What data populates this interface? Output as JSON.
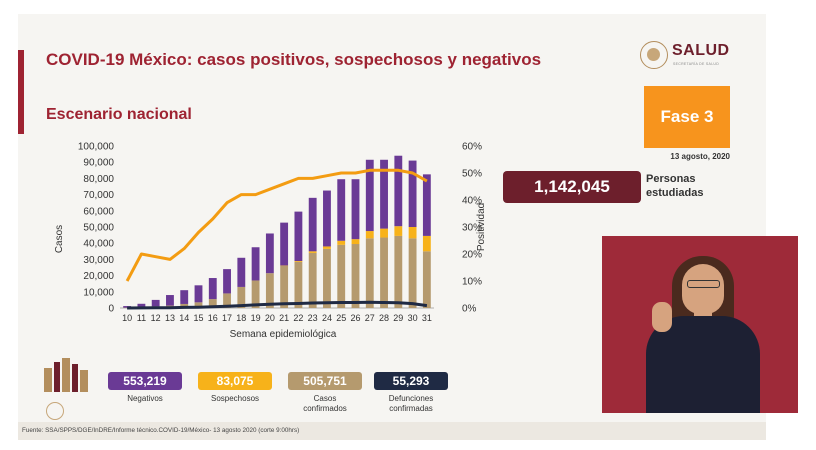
{
  "header": {
    "title": "COVID-19 México: casos positivos, sospechosos y negativos",
    "subtitle": "Escenario nacional"
  },
  "logo": {
    "text": "SALUD",
    "subtext": "SECRETARÍA DE SALUD"
  },
  "phase": {
    "label": "Fase 3",
    "date": "13 agosto, 2020"
  },
  "studied": {
    "value": "1,142,045",
    "label_line1": "Personas",
    "label_line2": "estudiadas"
  },
  "legend": {
    "negatives": {
      "value": "553,219",
      "label": "Negativos",
      "color": "#6a3a95"
    },
    "suspects": {
      "value": "83,075",
      "label": "Sospechosos",
      "color": "#f7b21a"
    },
    "confirmed": {
      "value": "505,751",
      "label_line1": "Casos",
      "label_line2": "confirmados",
      "color": "#b59a6e"
    },
    "deaths": {
      "value": "55,293",
      "label_line1": "Defunciones",
      "label_line2": "confirmadas",
      "color": "#1f2a44"
    }
  },
  "source": "Fuente: SSA/SPPS/DGE/InDRE/Informe técnico.COVID-19/México- 13 agosto 2020 (corte 9:00hrs)",
  "chart_data": {
    "type": "bar",
    "stacked": true,
    "categories": [
      "10",
      "11",
      "12",
      "13",
      "14",
      "15",
      "16",
      "17",
      "18",
      "19",
      "20",
      "21",
      "22",
      "23",
      "24",
      "25",
      "26",
      "27",
      "28",
      "29",
      "30",
      "31"
    ],
    "xlabel": "Semana epidemiológica",
    "ylabel": "Casos",
    "y2label": "Positividad",
    "ylim": [
      0,
      100000
    ],
    "y2lim": [
      0,
      60
    ],
    "y_ticks": [
      "0",
      "10,000",
      "20,000",
      "30,000",
      "40,000",
      "50,000",
      "60,000",
      "70,000",
      "80,000",
      "90,000",
      "100,000"
    ],
    "y2_ticks": [
      "0%",
      "10%",
      "20%",
      "30%",
      "40%",
      "50%",
      "60%"
    ],
    "series": [
      {
        "key": "confirmed",
        "color": "#b59a6e",
        "values": [
          200,
          600,
          1000,
          1500,
          2500,
          3500,
          5500,
          9000,
          13000,
          17000,
          21500,
          26000,
          28500,
          34000,
          36500,
          39000,
          39500,
          43000,
          43500,
          44500,
          43000,
          35000
        ]
      },
      {
        "key": "suspects",
        "color": "#f7b21a",
        "values": [
          0,
          0,
          0,
          0,
          0,
          0,
          0,
          0,
          0,
          0,
          0,
          200,
          500,
          1000,
          1500,
          2500,
          3000,
          4500,
          5500,
          6000,
          7000,
          9500
        ]
      },
      {
        "key": "negatives",
        "color": "#6a3a95",
        "values": [
          1000,
          2000,
          4000,
          6500,
          8500,
          10500,
          13000,
          15000,
          18000,
          20500,
          24500,
          26500,
          30500,
          33000,
          34500,
          38000,
          37000,
          44000,
          42500,
          43500,
          41000,
          38000
        ]
      }
    ],
    "lines": [
      {
        "key": "deaths",
        "axis": "left",
        "color": "#1f2a44",
        "values": [
          0,
          50,
          100,
          200,
          350,
          500,
          800,
          1100,
          1500,
          1900,
          2300,
          2600,
          2800,
          3100,
          3300,
          3400,
          3400,
          3500,
          3400,
          3200,
          2700,
          1500
        ]
      },
      {
        "key": "positivity",
        "axis": "right",
        "color": "#f39c12",
        "values": [
          10,
          20,
          19,
          18,
          22,
          28,
          33,
          39,
          42,
          42,
          44,
          46,
          48,
          48,
          49,
          50,
          50,
          51,
          51,
          51,
          50,
          47
        ]
      }
    ]
  }
}
